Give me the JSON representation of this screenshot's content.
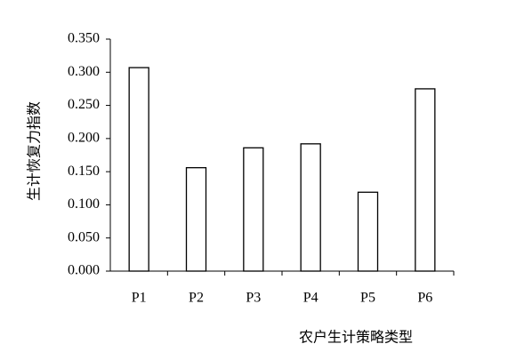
{
  "chart_data": {
    "type": "bar",
    "y_label": "生计恢复力指数",
    "x_label": "农户生计策略类型",
    "categories": [
      "P1",
      "P2",
      "P3",
      "P4",
      "P5",
      "P6"
    ],
    "values": [
      0.307,
      0.156,
      0.186,
      0.192,
      0.119,
      0.275
    ],
    "color": "#ffffff",
    "ylim": [
      0,
      0.35
    ],
    "yticks": [
      {
        "value": 0,
        "label": "0.000"
      },
      {
        "value": 0.05,
        "label": "0.050"
      },
      {
        "value": 0.1,
        "label": "0.100"
      },
      {
        "value": 0.15,
        "label": "0.150"
      },
      {
        "value": 0.2,
        "label": "0.200"
      },
      {
        "value": 0.25,
        "label": "0.250"
      },
      {
        "value": 0.3,
        "label": "0.300"
      },
      {
        "value": 0.35,
        "label": "0.350"
      }
    ],
    "grid": false
  }
}
